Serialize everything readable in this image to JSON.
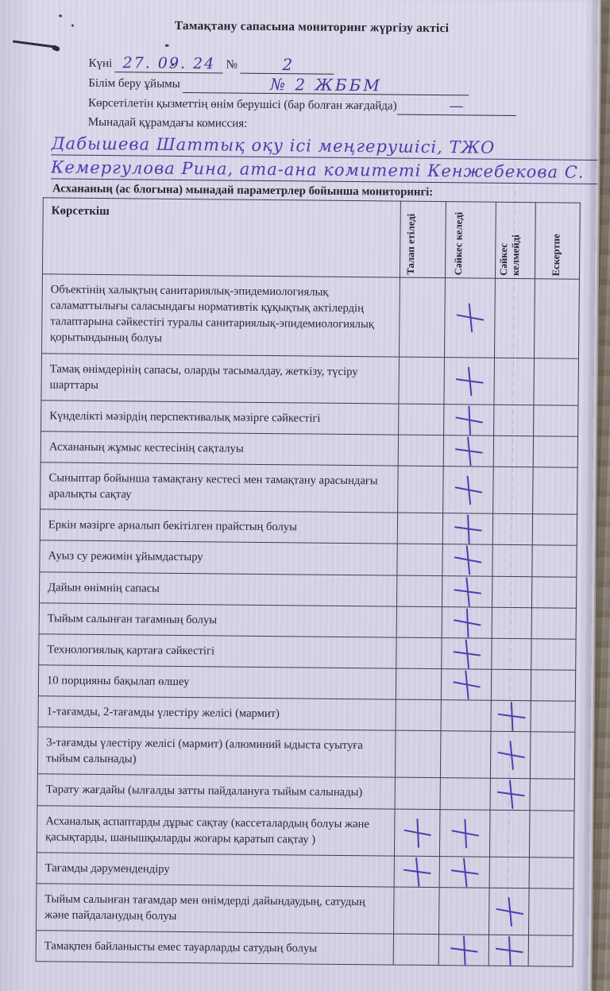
{
  "colors": {
    "ink": "#4a3fb0",
    "ink_dark": "#3f3694",
    "paper": "#d8d5e8",
    "wood": "#8d8277",
    "border": "#3e3e49",
    "text": "#26262e"
  },
  "page": {
    "title": "Тамақтану сапасына мониторинг жүргізу актісі",
    "fields": {
      "date_label": "Күні",
      "date_value": "27. 09. 24",
      "number_label": "№",
      "number_value": "2",
      "org_label": "Білім беру ұйымы",
      "org_value": "№ 2 ЖББМ",
      "supplier_label": "Көрсетілетін қызметтің өнім берушісі  (бар болған жағдайда)",
      "supplier_value": "—",
      "commission_label": "Мынадай құрамдағы комиссия:",
      "commission_line1": "Дабышева Шаттық  оқу  ісі  меңгерушісі,  ТЖО",
      "commission_line2": "Кемергулова  Рина,    ата-ана  комитеті  Кенжебекова С."
    },
    "table_intro": "Асхананың  (ас блогына) мынадай параметрлер бойынша мониторингі:",
    "table": {
      "headers": [
        "Көрсеткіш",
        "Талап етіледі",
        "Сәйкес келеді",
        "Сәйкес келмейді",
        "Ескертпе"
      ],
      "mark_glyph": "+",
      "rows": [
        {
          "label": "Объектінің халықтың санитариялық-эпидемиологиялық саламаттылығы саласындағы нормативтік құқықтық актілердің талаптарына сәйкестігі туралы санитариялық-эпидемиологиялық қорытындының болуы",
          "marks": [
            "keledi"
          ]
        },
        {
          "label": "Тамақ өнімдерінің сапасы, оларды тасымалдау, жеткізу, түсіру шарттары",
          "marks": [
            "keledi"
          ]
        },
        {
          "label": "Күнделікті мәзірдің перспективалық мәзірге сәйкестігі",
          "marks": [
            "keledi"
          ]
        },
        {
          "label": "Асхананың жұмыс кестесінің сақталуы",
          "marks": [
            "keledi"
          ]
        },
        {
          "label": "Сыныптар бойынша тамақтану кестесі мен тамақтану арасындағы аралықты сақтау",
          "marks": [
            "keledi"
          ]
        },
        {
          "label": "Еркін мәзірге арналып бекітілген прайстың болуы",
          "marks": [
            "keledi"
          ]
        },
        {
          "label": "Ауыз су режимін ұйымдастыру",
          "marks": [
            "keledi"
          ]
        },
        {
          "label": "Дайын өнімнің сапасы",
          "marks": [
            "keledi"
          ]
        },
        {
          "label": "Тыйым салынған тағамның болуы",
          "marks": [
            "keledi"
          ]
        },
        {
          "label": "Технологиялық картаға сәйкестігі",
          "marks": [
            "keledi"
          ]
        },
        {
          "label": "10 порцияны бақылап өлшеу",
          "marks": [
            "keledi"
          ]
        },
        {
          "label": "1-тағамды, 2-тағамды үлестіру желісі  (мармит)",
          "marks": [
            "kelmeydi"
          ]
        },
        {
          "label": "3-тағамды үлестіру желісі  (мармит) (алюминий ыдыста суытуға тыйым салынады)",
          "marks": [
            "kelmeydi"
          ]
        },
        {
          "label": "Тарату жағдайы (ылғалды затты пайдалануға тыйым салынады)",
          "marks": [
            "kelmeydi"
          ]
        },
        {
          "label": "Асханалық аспаптарды дұрыс сақтау (кассеталардың болуы және қасықтарды, шанышқыларды жоғары қаратып сақтау )",
          "marks": [
            "talap",
            "keledi"
          ]
        },
        {
          "label": "Тағамды дәрумендендіру",
          "marks": [
            "talap",
            "keledi"
          ]
        },
        {
          "label": "Тыйым салынған тағамдар мен өнімдерді дайындаудың, сатудың және пайдаланудың болуы",
          "marks": [
            "kelmeydi"
          ]
        },
        {
          "label": "Тамақпен байланысты емес тауарларды сатудың болуы",
          "marks": [
            "keledi",
            "kelmeydi"
          ]
        }
      ]
    }
  }
}
